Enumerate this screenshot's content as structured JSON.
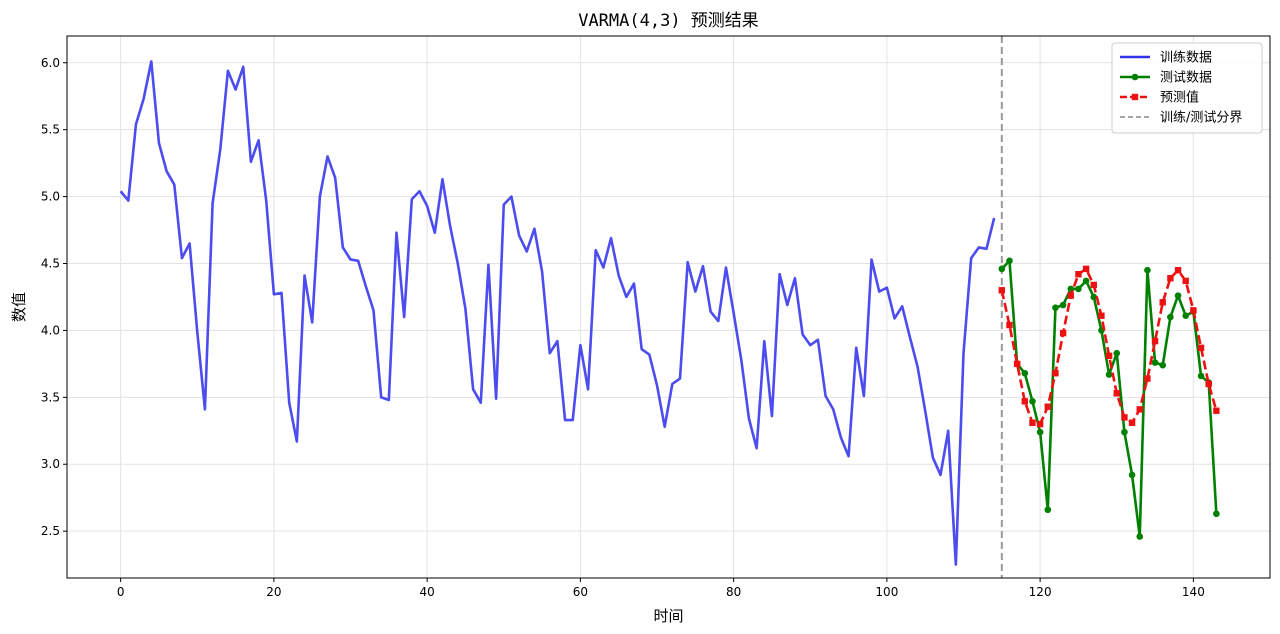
{
  "chart_data": {
    "type": "line",
    "title": "VARMA(4,3) 预测结果",
    "xlabel": "时间",
    "ylabel": "数值",
    "xlim": [
      -7,
      150
    ],
    "ylim": [
      2.15,
      6.2
    ],
    "x_ticks": [
      0,
      20,
      40,
      60,
      80,
      100,
      120,
      140
    ],
    "y_ticks": [
      2.5,
      3.0,
      3.5,
      4.0,
      4.5,
      5.0,
      5.5,
      6.0
    ],
    "grid": true,
    "legend_position": "top-right",
    "split_x": 115,
    "split_label": "训练/测试分界",
    "split_color": "#999999",
    "series": [
      {
        "name": "训练数据",
        "color": "#3333ee",
        "style": "solid",
        "marker": "none",
        "x_start": 0,
        "values": [
          5.04,
          4.97,
          5.54,
          5.73,
          6.01,
          5.4,
          5.19,
          5.09,
          4.54,
          4.65,
          3.99,
          3.41,
          4.95,
          5.35,
          5.94,
          5.8,
          5.97,
          5.26,
          5.42,
          4.97,
          4.27,
          4.28,
          3.46,
          3.17,
          4.41,
          4.06,
          5.0,
          5.3,
          5.14,
          4.62,
          4.53,
          4.52,
          4.33,
          4.15,
          3.5,
          3.48,
          4.73,
          4.1,
          4.98,
          5.04,
          4.93,
          4.73,
          5.13,
          4.78,
          4.5,
          4.16,
          3.56,
          3.46,
          4.49,
          3.49,
          4.94,
          5.0,
          4.71,
          4.59,
          4.76,
          4.44,
          3.83,
          3.92,
          3.33,
          3.33,
          3.89,
          3.56,
          4.6,
          4.47,
          4.69,
          4.41,
          4.25,
          4.35,
          3.86,
          3.82,
          3.59,
          3.28,
          3.6,
          3.64,
          4.51,
          4.29,
          4.48,
          4.14,
          4.07,
          4.47,
          4.13,
          3.78,
          3.34,
          3.12,
          3.92,
          3.36,
          4.42,
          4.19,
          4.39,
          3.97,
          3.89,
          3.93,
          3.51,
          3.41,
          3.2,
          3.06,
          3.87,
          3.51,
          4.53,
          4.29,
          4.32,
          4.09,
          4.18,
          3.95,
          3.73,
          3.4,
          3.05,
          2.92,
          3.25,
          2.25,
          3.83,
          4.54,
          4.62,
          4.61,
          4.84
        ]
      },
      {
        "name": "测试数据",
        "color": "#008000",
        "style": "solid",
        "marker": "circle",
        "x_start": 115,
        "values": [
          4.46,
          4.52,
          3.75,
          3.68,
          3.47,
          3.24,
          2.66,
          4.17,
          4.19,
          4.31,
          4.31,
          4.37,
          4.25,
          4.0,
          3.67,
          3.83,
          3.24,
          2.92,
          2.46,
          4.45,
          3.76,
          3.74,
          4.1,
          4.26,
          4.11,
          4.14,
          3.66,
          3.61,
          2.63
        ]
      },
      {
        "name": "预测值",
        "color": "#ee1111",
        "style": "dashed",
        "marker": "square",
        "x_start": 115,
        "values": [
          4.3,
          4.04,
          3.75,
          3.47,
          3.31,
          3.3,
          3.43,
          3.68,
          3.98,
          4.26,
          4.42,
          4.46,
          4.34,
          4.11,
          3.81,
          3.53,
          3.35,
          3.31,
          3.41,
          3.64,
          3.92,
          4.21,
          4.39,
          4.45,
          4.37,
          4.15,
          3.87,
          3.6,
          3.4
        ]
      }
    ]
  }
}
